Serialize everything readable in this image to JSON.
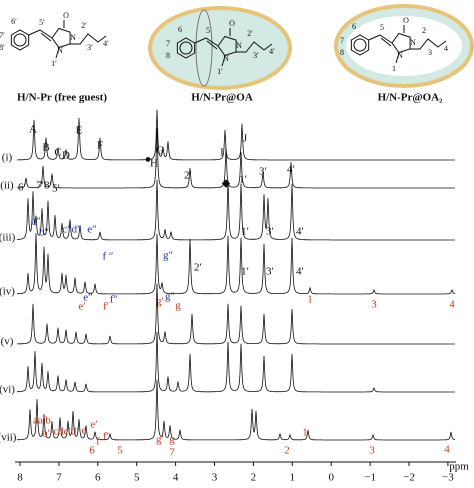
{
  "structures": [
    {
      "caption": "H/N-Pr (free guest)",
      "atoms": [
        "6′",
        "5′",
        "7′",
        "8′",
        "O",
        "N",
        "N",
        "1′",
        "2′",
        "3′",
        "4′"
      ]
    },
    {
      "caption": "H/N-Pr@OA",
      "atoms": [
        "6",
        "5",
        "7",
        "8",
        "O",
        "N",
        "N",
        "1′",
        "2′",
        "3′",
        "4′"
      ]
    },
    {
      "caption": "H/N-Pr@OA₂",
      "atoms": [
        "6",
        "5",
        "7",
        "8",
        "O",
        "N",
        "N",
        "1",
        "2",
        "3",
        "4"
      ]
    }
  ],
  "traces": [
    {
      "label": "(i)",
      "peaks": [
        "A",
        "B",
        "C",
        "D",
        "E",
        "F",
        "●",
        "H",
        "G",
        "I",
        "J"
      ]
    },
    {
      "label": "(ii)",
      "peaks": [
        "6′",
        "7′8′",
        "5′",
        "2′",
        "◆",
        "1′",
        "3′",
        "4′"
      ]
    },
    {
      "label": "(iii)",
      "peaks": [
        "a″",
        "b″",
        "c″d″",
        "e″",
        "f ″",
        "g″",
        "1′",
        "3′",
        "4′"
      ]
    },
    {
      "label": "(iv)",
      "peaks": [
        "2′",
        "1′",
        "3′",
        "4′",
        "e″",
        "e′",
        "f″",
        "f′",
        "g′",
        "g″",
        "g",
        "1",
        "3",
        "4"
      ]
    },
    {
      "label": "(v)",
      "peaks": []
    },
    {
      "label": "(vi)",
      "peaks": []
    },
    {
      "label": "(vii)",
      "peaks": [
        "aa′b",
        "b′",
        "cdc′d′",
        "e",
        "e′",
        "6",
        "f",
        "f′",
        "5",
        "g′",
        "g",
        "7",
        "2",
        "1",
        "3",
        "4"
      ]
    }
  ],
  "axis": {
    "ticks": [
      "8",
      "7",
      "6",
      "5",
      "4",
      "3",
      "2",
      "1",
      "0",
      "−1",
      "−2",
      "−3"
    ],
    "unit": "ppm"
  }
}
